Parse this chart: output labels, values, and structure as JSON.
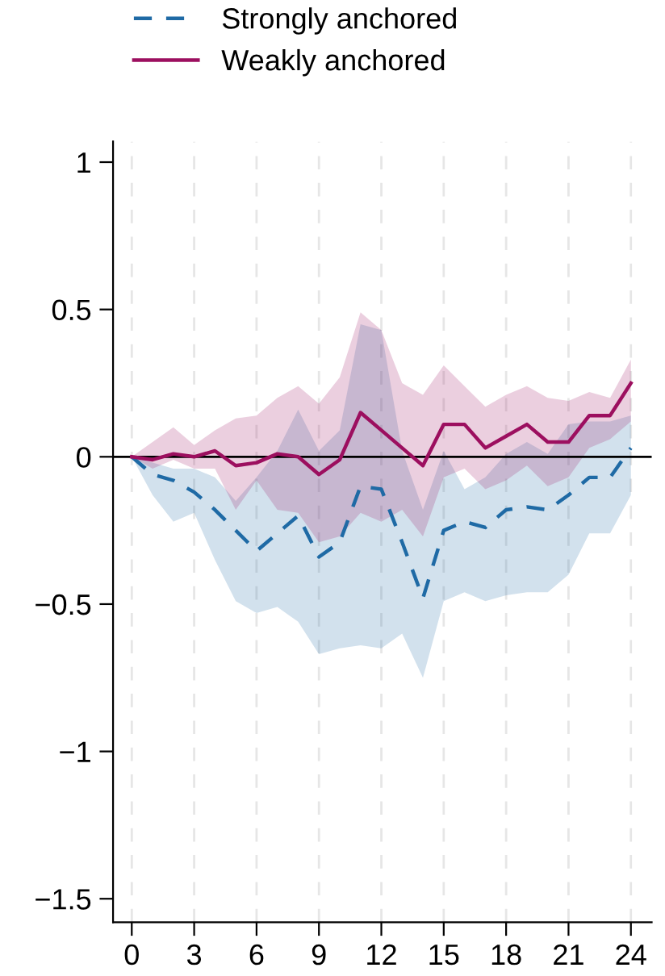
{
  "chart_data": {
    "type": "line",
    "x": [
      0,
      1,
      2,
      3,
      4,
      5,
      6,
      7,
      8,
      9,
      10,
      11,
      12,
      13,
      14,
      15,
      16,
      17,
      18,
      19,
      20,
      21,
      22,
      23,
      24
    ],
    "series": [
      {
        "name": "Strongly anchored",
        "color": "#1f6aa5",
        "line_style": "dashed",
        "values": [
          0,
          -0.06,
          -0.08,
          -0.12,
          -0.18,
          -0.25,
          -0.32,
          -0.26,
          -0.2,
          -0.34,
          -0.29,
          -0.1,
          -0.11,
          -0.29,
          -0.48,
          -0.25,
          -0.22,
          -0.24,
          -0.18,
          -0.17,
          -0.18,
          -0.13,
          -0.07,
          -0.07,
          0.03
        ],
        "lower": [
          0,
          -0.13,
          -0.22,
          -0.19,
          -0.35,
          -0.49,
          -0.53,
          -0.51,
          -0.56,
          -0.67,
          -0.65,
          -0.64,
          -0.65,
          -0.6,
          -0.75,
          -0.49,
          -0.46,
          -0.49,
          -0.47,
          -0.46,
          -0.46,
          -0.4,
          -0.26,
          -0.26,
          -0.13
        ],
        "upper": [
          0,
          -0.02,
          -0.04,
          -0.04,
          -0.07,
          -0.15,
          -0.07,
          0.02,
          0.16,
          0.02,
          0.09,
          0.45,
          0.43,
          0.02,
          -0.18,
          0.02,
          -0.11,
          -0.07,
          0.01,
          0.05,
          0.01,
          0.11,
          0.12,
          0.12,
          0.14
        ]
      },
      {
        "name": "Weakly anchored",
        "color": "#9c0f5f",
        "line_style": "solid",
        "values": [
          0,
          -0.01,
          0.01,
          0,
          0.02,
          -0.03,
          -0.02,
          0.01,
          0,
          -0.06,
          -0.01,
          0.15,
          0.09,
          0.03,
          -0.03,
          0.11,
          0.11,
          0.03,
          0.07,
          0.11,
          0.05,
          0.05,
          0.14,
          0.14,
          0.25
        ],
        "lower": [
          0,
          -0.04,
          -0.01,
          -0.04,
          -0.04,
          -0.18,
          -0.08,
          -0.18,
          -0.19,
          -0.29,
          -0.27,
          -0.19,
          -0.22,
          -0.18,
          -0.27,
          -0.07,
          -0.04,
          -0.11,
          -0.08,
          -0.03,
          -0.1,
          -0.07,
          0.03,
          0.06,
          0.12
        ],
        "upper": [
          0,
          0.05,
          0.1,
          0.04,
          0.09,
          0.13,
          0.14,
          0.2,
          0.24,
          0.18,
          0.27,
          0.49,
          0.43,
          0.25,
          0.21,
          0.31,
          0.24,
          0.17,
          0.21,
          0.24,
          0.2,
          0.19,
          0.22,
          0.2,
          0.33
        ]
      }
    ],
    "xlim": [
      -0.9,
      25
    ],
    "xticks": [
      0,
      3,
      6,
      9,
      12,
      15,
      18,
      21,
      24
    ],
    "ylim": [
      -1.58,
      1.07
    ],
    "yticks": [
      {
        "value": -1.5,
        "label": "−1.5"
      },
      {
        "value": -1,
        "label": "−1"
      },
      {
        "value": -0.5,
        "label": "−0.5"
      },
      0,
      0.5,
      1
    ],
    "ref_lines": [
      {
        "axis": "y",
        "value": 0,
        "color": "#000000"
      }
    ],
    "grid": "x",
    "legend": "top",
    "marker": "none"
  }
}
